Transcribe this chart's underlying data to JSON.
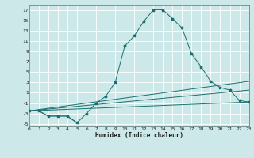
{
  "xlabel": "Humidex (Indice chaleur)",
  "xlim": [
    0,
    23
  ],
  "ylim": [
    -5.5,
    18
  ],
  "xticks": [
    0,
    1,
    2,
    3,
    4,
    5,
    6,
    7,
    8,
    9,
    10,
    11,
    12,
    13,
    14,
    15,
    16,
    17,
    18,
    19,
    20,
    21,
    22,
    23
  ],
  "yticks": [
    -5,
    -3,
    -1,
    1,
    3,
    5,
    7,
    9,
    11,
    13,
    15,
    17
  ],
  "background_color": "#cce8e8",
  "grid_color": "#ffffff",
  "line_color": "#1a7070",
  "main_line": {
    "x": [
      0,
      1,
      2,
      3,
      4,
      5,
      6,
      7,
      8,
      9,
      10,
      11,
      12,
      13,
      14,
      15,
      16,
      17,
      18,
      19,
      20,
      21,
      22,
      23
    ],
    "y": [
      -2.5,
      -2.5,
      -3.5,
      -3.5,
      -3.5,
      -4.8,
      -3.0,
      -1.0,
      0.3,
      3.0,
      10.0,
      12.0,
      14.8,
      17.0,
      17.0,
      15.3,
      13.5,
      8.5,
      6.0,
      3.2,
      2.0,
      1.5,
      -0.5,
      -0.8
    ]
  },
  "extra_lines": [
    {
      "x": [
        0,
        1,
        2,
        3,
        4,
        5
      ],
      "y": [
        -2.5,
        -2.5,
        -3.5,
        -3.5,
        -3.5,
        -4.8
      ]
    },
    {
      "x": [
        0,
        23
      ],
      "y": [
        -2.5,
        -0.8
      ]
    },
    {
      "x": [
        0,
        23
      ],
      "y": [
        -2.5,
        1.5
      ]
    },
    {
      "x": [
        0,
        23
      ],
      "y": [
        -2.5,
        3.2
      ]
    }
  ]
}
